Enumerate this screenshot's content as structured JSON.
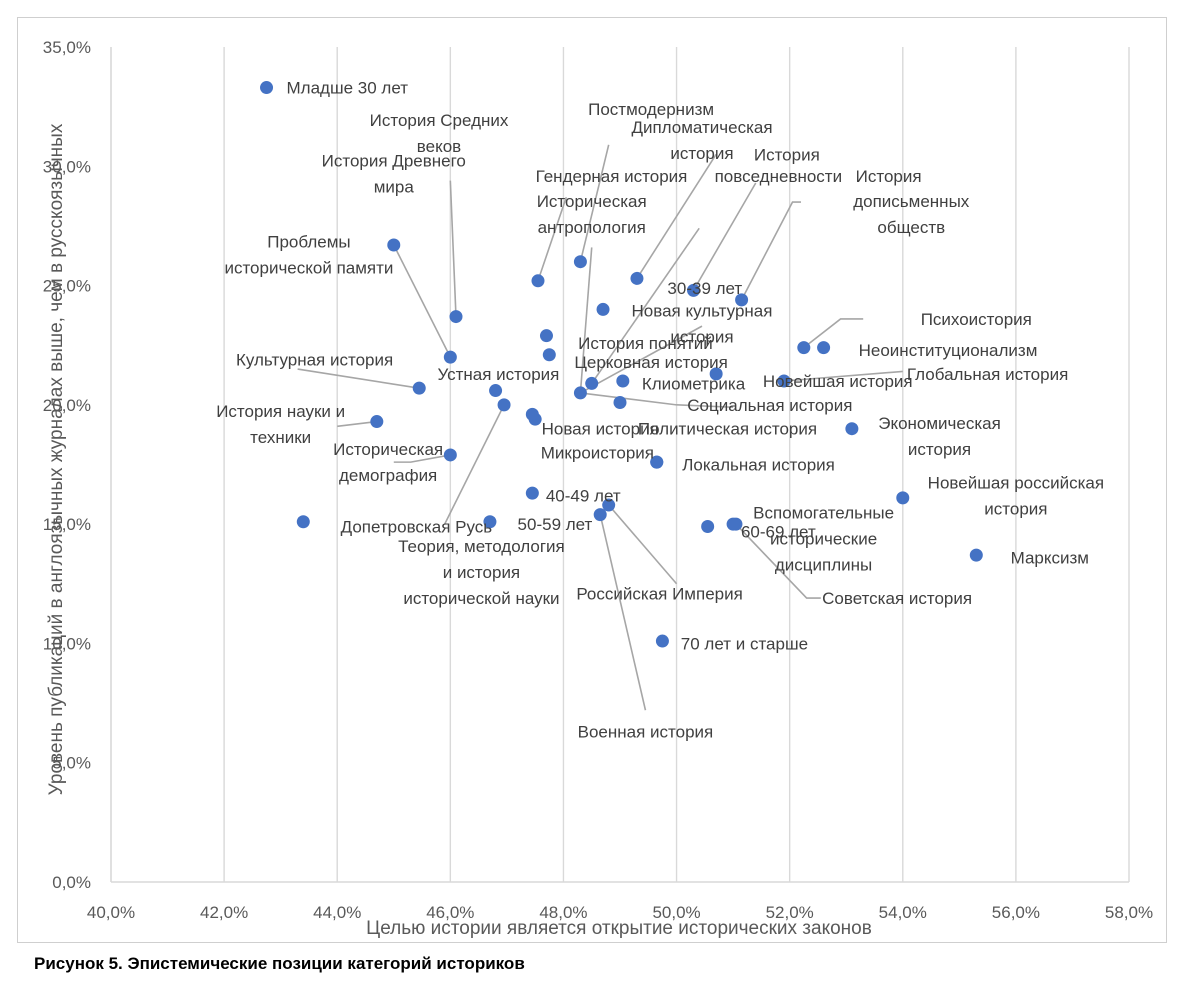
{
  "figure_caption": "Рисунок 5. Эпистемические позиции категорий историков",
  "chart_data": {
    "type": "scatter",
    "title": "",
    "xlabel": "Целью истории является открытие исторических законов",
    "ylabel": "Уровень публикаций в англоязычных журналах выше, чем в русскоязычных",
    "xlim": [
      40,
      58
    ],
    "ylim": [
      0,
      35
    ],
    "x_ticks": [
      40,
      42,
      44,
      46,
      48,
      50,
      52,
      54,
      56,
      58
    ],
    "y_ticks": [
      0,
      5,
      10,
      15,
      20,
      25,
      30,
      35
    ],
    "x_tick_labels": [
      "40,0%",
      "42,0%",
      "44,0%",
      "46,0%",
      "48,0%",
      "50,0%",
      "52,0%",
      "54,0%",
      "56,0%",
      "58,0%"
    ],
    "y_tick_labels": [
      "0,0%",
      "5,0%",
      "10,0%",
      "15,0%",
      "20,0%",
      "25,0%",
      "30,0%",
      "35,0%"
    ],
    "grid": "vertical",
    "marker_color": "#4472c4",
    "leader_color": "#a6a6a6",
    "points": [
      {
        "label": "Младше 30 лет",
        "x": 42.75,
        "y": 33.3
      },
      {
        "label": "30-39 лет",
        "x": 50.3,
        "y": 24.8
      },
      {
        "label": "40-49 лет",
        "x": 47.45,
        "y": 16.3
      },
      {
        "label": "50-59 лет",
        "x": 46.7,
        "y": 15.1
      },
      {
        "label": "60-69 лет",
        "x": 51.05,
        "y": 15.0
      },
      {
        "label": "70 лет и старше",
        "x": 49.75,
        "y": 10.1
      },
      {
        "label": "История Средних веков",
        "x": 46.1,
        "y": 23.7
      },
      {
        "label": "История Древнего мира",
        "x": 45.0,
        "y": 26.7
      },
      {
        "label": "Проблемы исторической памяти",
        "x": 46.0,
        "y": 22.0
      },
      {
        "label": "Культурная история",
        "x": 45.45,
        "y": 20.7
      },
      {
        "label": "История науки и техники",
        "x": 44.7,
        "y": 19.3
      },
      {
        "label": "Историческая демография",
        "x": 46.0,
        "y": 17.9
      },
      {
        "label": "Допетровская Русь",
        "x": 43.4,
        "y": 15.1
      },
      {
        "label": "Устная история",
        "x": 46.8,
        "y": 20.6
      },
      {
        "label": "Теория, методология и история исторической науки",
        "x": 46.95,
        "y": 20.0
      },
      {
        "label": "Гендерная история",
        "x": 47.55,
        "y": 25.2
      },
      {
        "label": "Постмодернизм",
        "x": 48.3,
        "y": 26.0
      },
      {
        "label": "Дипломатическая история",
        "x": 49.3,
        "y": 25.3
      },
      {
        "label": "Историческая антропология",
        "x": 48.5,
        "y": 20.9
      },
      {
        "label": "История понятий",
        "x": 47.7,
        "y": 22.9
      },
      {
        "label": "Церковная история",
        "x": 47.75,
        "y": 22.1
      },
      {
        "label": "Новая культурная история",
        "x": 48.7,
        "y": 24.0
      },
      {
        "label": "История повседневности",
        "x": 48.3,
        "y": 20.5
      },
      {
        "label": "История дописьменных обществ",
        "x": 51.15,
        "y": 24.4
      },
      {
        "label": "Клиометрика",
        "x": 49.05,
        "y": 21.0
      },
      {
        "label": "Новая история",
        "x": 47.45,
        "y": 19.6
      },
      {
        "label": "Социальная история",
        "x": 49.0,
        "y": 20.1
      },
      {
        "label": "Политическая история",
        "x": 47.5,
        "y": 19.4
      },
      {
        "label": "Микроистория",
        "x": 49.65,
        "y": 17.6
      },
      {
        "label": "Российская Империя",
        "x": 48.8,
        "y": 15.8
      },
      {
        "label": "Военная история",
        "x": 48.65,
        "y": 15.4
      },
      {
        "label": "Психоистория",
        "x": 52.25,
        "y": 22.4
      },
      {
        "label": "Неоинституционализм",
        "x": 52.6,
        "y": 22.4
      },
      {
        "label": "Новейшая история",
        "x": 50.7,
        "y": 21.3
      },
      {
        "label": "Глобальная история",
        "x": 51.9,
        "y": 21.0
      },
      {
        "label": "Экономическая история",
        "x": 53.1,
        "y": 19.0
      },
      {
        "label": "Локальная история",
        "x": 49.65,
        "y": 17.6
      },
      {
        "label": "Новейшая российская история",
        "x": 54.0,
        "y": 16.1
      },
      {
        "label": "Вспомогательные исторические дисциплины",
        "x": 50.55,
        "y": 14.9
      },
      {
        "label": "Советская история",
        "x": 51.0,
        "y": 15.0
      },
      {
        "label": "Марксизм",
        "x": 55.3,
        "y": 13.7
      }
    ],
    "annotations": [
      {
        "lines": [
          "Младше 30 лет"
        ],
        "x": 42.75,
        "y": 33.3
      },
      {
        "lines": [
          "Постмодернизм"
        ],
        "x": 49.55,
        "y": 32.4
      },
      {
        "lines": [
          "История Средних",
          "веков"
        ],
        "x": 45.8,
        "y": 31.4
      },
      {
        "lines": [
          "Дипломатическая",
          "история"
        ],
        "x": 50.45,
        "y": 31.1
      },
      {
        "lines": [
          "История"
        ],
        "x": 51.95,
        "y": 30.5
      },
      {
        "lines": [
          "История Древнего",
          "мира"
        ],
        "x": 45.0,
        "y": 29.7
      },
      {
        "lines": [
          "Гендерная история"
        ],
        "x": 48.85,
        "y": 29.6
      },
      {
        "lines": [
          "повседневности"
        ],
        "x": 51.8,
        "y": 29.6
      },
      {
        "lines": [
          "История"
        ],
        "x": 53.75,
        "y": 29.6
      },
      {
        "lines": [
          "Историческая",
          "антропология"
        ],
        "x": 48.5,
        "y": 28.0
      },
      {
        "lines": [
          "дописьменных",
          "обществ"
        ],
        "x": 54.15,
        "y": 28.0
      },
      {
        "lines": [
          "Проблемы",
          "исторической памяти"
        ],
        "x": 43.5,
        "y": 26.3
      },
      {
        "lines": [
          "30-39 лет"
        ],
        "x": 50.5,
        "y": 24.9
      },
      {
        "lines": [
          "Новая культурная",
          "история"
        ],
        "x": 50.45,
        "y": 23.4
      },
      {
        "lines": [
          "Психоистория"
        ],
        "x": 55.3,
        "y": 23.6
      },
      {
        "lines": [
          "История понятий"
        ],
        "x": 49.45,
        "y": 22.6
      },
      {
        "lines": [
          "Неоинституционализм"
        ],
        "x": 54.8,
        "y": 22.3
      },
      {
        "lines": [
          "Культурная история"
        ],
        "x": 43.6,
        "y": 21.9
      },
      {
        "lines": [
          "Церковная история"
        ],
        "x": 49.55,
        "y": 21.8
      },
      {
        "lines": [
          "Глобальная история"
        ],
        "x": 55.5,
        "y": 21.3
      },
      {
        "lines": [
          "Устная история"
        ],
        "x": 46.85,
        "y": 21.3
      },
      {
        "lines": [
          "Новейшая история"
        ],
        "x": 52.85,
        "y": 21.0
      },
      {
        "lines": [
          "Клиометрика"
        ],
        "x": 50.3,
        "y": 20.9
      },
      {
        "lines": [
          "Социальная история"
        ],
        "x": 51.65,
        "y": 20.0
      },
      {
        "lines": [
          "История науки и",
          "техники"
        ],
        "x": 43.0,
        "y": 19.2
      },
      {
        "lines": [
          "Экономическая",
          "история"
        ],
        "x": 54.65,
        "y": 18.7
      },
      {
        "lines": [
          "Новая история"
        ],
        "x": 48.65,
        "y": 19.0
      },
      {
        "lines": [
          "Политическая история"
        ],
        "x": 50.9,
        "y": 19.0
      },
      {
        "lines": [
          "Историческая",
          "демография"
        ],
        "x": 44.9,
        "y": 17.6
      },
      {
        "lines": [
          "Микроистория"
        ],
        "x": 48.6,
        "y": 18.0
      },
      {
        "lines": [
          "Локальная история"
        ],
        "x": 51.45,
        "y": 17.5
      },
      {
        "lines": [
          "Новейшая российская",
          "история"
        ],
        "x": 56.0,
        "y": 16.2
      },
      {
        "lines": [
          "40-49 лет"
        ],
        "x": 48.35,
        "y": 16.2
      },
      {
        "lines": [
          "Вспомогательные",
          "исторические",
          "дисциплины"
        ],
        "x": 52.6,
        "y": 14.4
      },
      {
        "lines": [
          "Допетровская Русь"
        ],
        "x": 45.4,
        "y": 14.9
      },
      {
        "lines": [
          "50-59 лет"
        ],
        "x": 47.85,
        "y": 15.0
      },
      {
        "lines": [
          "60-69 лет"
        ],
        "x": 51.8,
        "y": 14.7
      },
      {
        "lines": [
          "Теория, методология",
          "и история",
          "исторической науки"
        ],
        "x": 46.55,
        "y": 13.0
      },
      {
        "lines": [
          "Марксизм"
        ],
        "x": 56.6,
        "y": 13.6
      },
      {
        "lines": [
          "Российская Империя"
        ],
        "x": 49.7,
        "y": 12.1
      },
      {
        "lines": [
          "Советская история"
        ],
        "x": 53.9,
        "y": 11.9
      },
      {
        "lines": [
          "70 лет и старше"
        ],
        "x": 51.2,
        "y": 10.0
      },
      {
        "lines": [
          "Военная история"
        ],
        "x": 49.45,
        "y": 6.3
      }
    ]
  }
}
